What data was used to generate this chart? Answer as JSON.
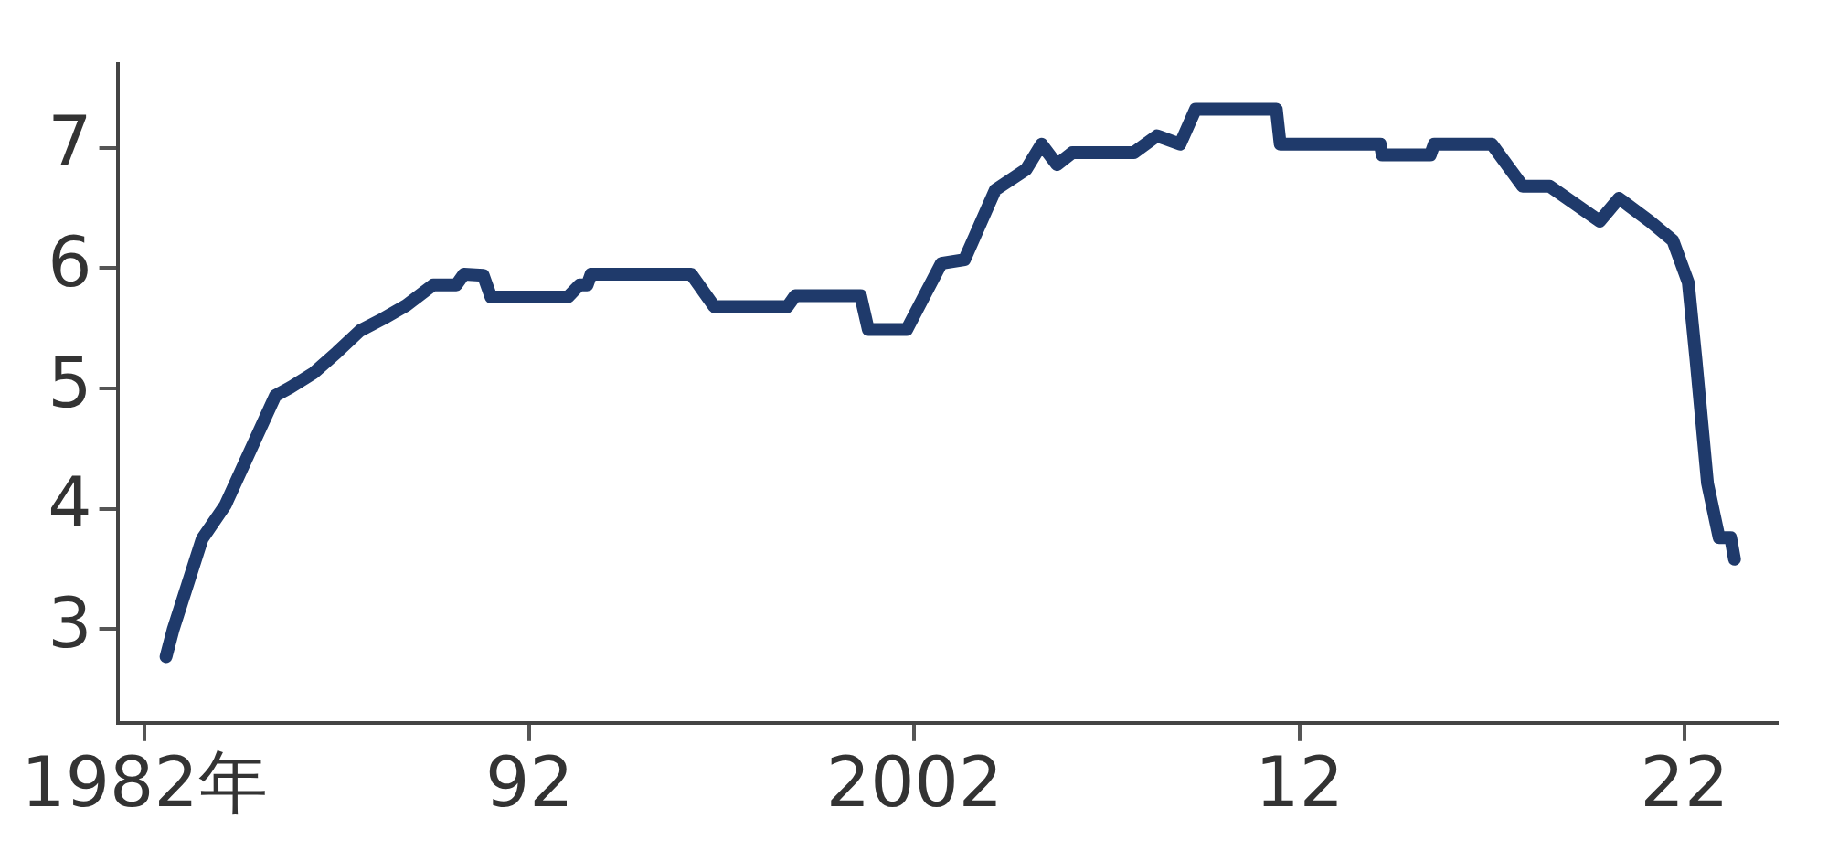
{
  "chart_data": {
    "type": "line",
    "x": [
      1982.56,
      1982.74,
      1983.5,
      1984.1,
      1984.9,
      1985.4,
      1985.8,
      1986.4,
      1987.0,
      1987.6,
      1988.2,
      1988.8,
      1989.5,
      1990.1,
      1990.3,
      1990.8,
      1991.0,
      1993.0,
      1993.3,
      1993.5,
      1993.6,
      1996.2,
      1996.8,
      1998.7,
      1998.9,
      2000.6,
      2000.8,
      2001.8,
      2002.7,
      2003.3,
      2004.1,
      2004.9,
      2005.3,
      2005.7,
      2006.1,
      2007.7,
      2008.3,
      2008.9,
      2009.3,
      2011.4,
      2011.5,
      2014.1,
      2014.15,
      2015.4,
      2015.5,
      2017.0,
      2017.8,
      2018.5,
      2019.8,
      2020.3,
      2021.1,
      2021.7,
      2022.1,
      2022.3,
      2022.6,
      2022.9,
      2023.2,
      2023.3
    ],
    "series": [
      {
        "color": "#1f3a6b",
        "values": [
          2.77,
          2.99,
          3.75,
          4.03,
          4.59,
          4.94,
          5.01,
          5.13,
          5.3,
          5.48,
          5.58,
          5.69,
          5.86,
          5.86,
          5.95,
          5.94,
          5.76,
          5.76,
          5.86,
          5.86,
          5.95,
          5.95,
          5.68,
          5.68,
          5.77,
          5.77,
          5.49,
          5.49,
          6.04,
          6.07,
          6.65,
          6.82,
          7.03,
          6.86,
          6.96,
          6.96,
          7.1,
          7.03,
          7.32,
          7.32,
          7.03,
          7.03,
          6.94,
          6.94,
          7.03,
          7.03,
          6.68,
          6.68,
          6.39,
          6.58,
          6.39,
          6.23,
          5.88,
          5.24,
          4.21,
          3.76,
          3.76,
          3.58
        ]
      }
    ],
    "xlim": [
      1981.3,
      2024.4
    ],
    "xticks": [
      {
        "value": 1982,
        "label": "1982年"
      },
      {
        "value": 1992,
        "label": "92"
      },
      {
        "value": 2002,
        "label": "2002"
      },
      {
        "value": 2012,
        "label": "12"
      },
      {
        "value": 2022,
        "label": "22"
      }
    ],
    "ylim": [
      2.22,
      7.7
    ],
    "yticks": [
      3,
      4,
      5,
      6,
      7
    ],
    "grid": false,
    "legend": false,
    "marker": "none",
    "line_style": "solid"
  }
}
